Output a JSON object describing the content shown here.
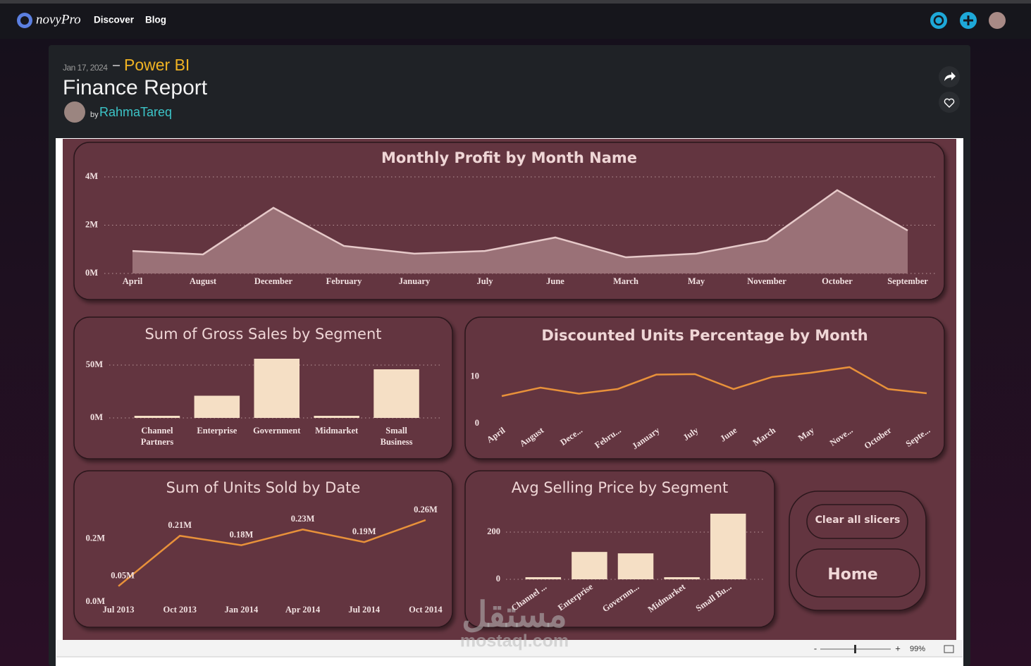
{
  "nav": {
    "brand": "novyPro",
    "links": [
      "Discover",
      "Blog"
    ]
  },
  "post": {
    "date": "Jan 17, 2024",
    "platform": "Power BI",
    "title": "Finance Report",
    "by": "by",
    "author": "RahmaTareq"
  },
  "buttons": [
    "Clear all slicers",
    "Home"
  ],
  "zoom": {
    "minus": "-",
    "plus": "+",
    "level": "99%"
  },
  "watermark": [
    "مستقل",
    "mostaql.com"
  ],
  "chart_data": [
    {
      "type": "area",
      "title": "Monthly Profit by Month Name",
      "categories": [
        "April",
        "August",
        "December",
        "February",
        "January",
        "July",
        "June",
        "March",
        "May",
        "November",
        "October",
        "September"
      ],
      "values": [
        930000,
        790000,
        2720000,
        1140000,
        820000,
        930000,
        1490000,
        670000,
        820000,
        1370000,
        3450000,
        1780000
      ],
      "color": "#e6c9c9",
      "fill_color": "#9a7177",
      "ylim": [
        0,
        4000000
      ],
      "yticks": [
        {
          "value": 0,
          "label": "0M"
        },
        {
          "value": 2000000,
          "label": "2M"
        },
        {
          "value": 4000000,
          "label": "4M"
        }
      ],
      "grid": true
    },
    {
      "type": "bar",
      "title": "Sum of Gross Sales by Segment",
      "categories": [
        "Channel Partners",
        "Enterprise",
        "Government",
        "Midmarket",
        "Small Business"
      ],
      "values": [
        2000000,
        21000000,
        56000000,
        2000000,
        46000000
      ],
      "color": "#f5dfc5",
      "ylim": [
        0,
        60000000
      ],
      "yticks": [
        {
          "value": 0,
          "label": "0M"
        },
        {
          "value": 50000000,
          "label": "50M"
        }
      ],
      "grid": true
    },
    {
      "type": "line",
      "title": "Discounted Units Percentage by Month",
      "categories": [
        "April",
        "August",
        "Dece...",
        "Febru...",
        "January",
        "July",
        "June",
        "March",
        "May",
        "Nove...",
        "October",
        "Septe..."
      ],
      "values": [
        5.9,
        7.7,
        6.4,
        7.4,
        10.5,
        10.6,
        7.4,
        10,
        10.9,
        12.1,
        7.4,
        6.5
      ],
      "color": "#e8913a",
      "ylim": [
        0,
        13
      ],
      "yticks": [
        0,
        10
      ],
      "grid": false
    },
    {
      "type": "line",
      "title": "Sum of Units Sold by Date",
      "categories": [
        "Jul 2013",
        "Oct 2013",
        "Jan 2014",
        "Apr 2014",
        "Jul 2014",
        "Oct 2014"
      ],
      "values": [
        50000,
        210000,
        180000,
        230000,
        190000,
        260000
      ],
      "value_labels": [
        "0.05M",
        "0.21M",
        "0.18M",
        "0.23M",
        "0.19M",
        "0.26M"
      ],
      "color": "#e8913a",
      "ylim": [
        0,
        280000
      ],
      "yticks": [
        {
          "value": 0,
          "label": "0.0M"
        },
        {
          "value": 200000,
          "label": "0.2M"
        }
      ],
      "grid": false
    },
    {
      "type": "bar",
      "title": "Avg Selling Price by Segment",
      "categories": [
        "Channel ...",
        "Enterprise",
        "Governm...",
        "Midmarket",
        "Small Bu..."
      ],
      "values": [
        9,
        116,
        110,
        9,
        278
      ],
      "color": "#f5dfc5",
      "ylim": [
        0,
        300
      ],
      "yticks": [
        0,
        200
      ],
      "grid": true
    }
  ]
}
